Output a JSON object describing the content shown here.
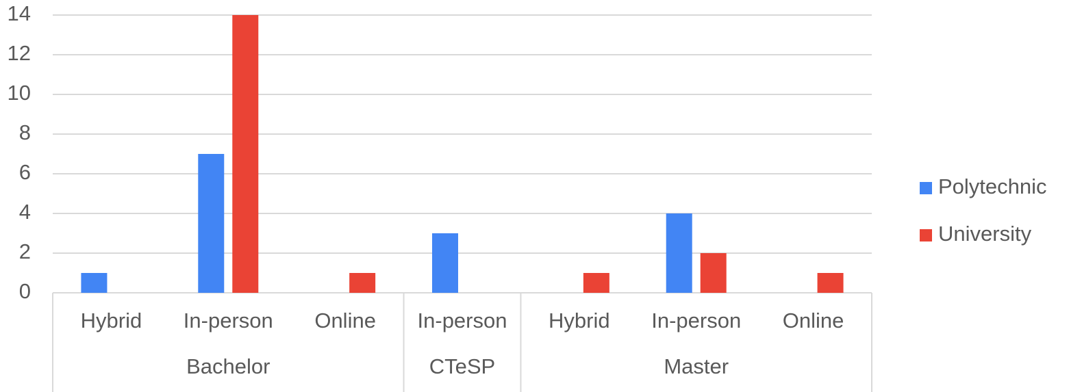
{
  "chart_data": {
    "type": "bar",
    "groups": [
      {
        "name": "Bachelor",
        "categories": [
          "Hybrid",
          "In-person",
          "Online"
        ]
      },
      {
        "name": "CTeSP",
        "categories": [
          "In-person"
        ]
      },
      {
        "name": "Master",
        "categories": [
          "Hybrid",
          "In-person",
          "Online"
        ]
      }
    ],
    "series": [
      {
        "name": "Polytechnic",
        "color": "#4285f4",
        "values": [
          1,
          7,
          0,
          3,
          0,
          4,
          0
        ]
      },
      {
        "name": "University",
        "color": "#ea4335",
        "values": [
          0,
          14,
          1,
          0,
          1,
          2,
          1
        ]
      }
    ],
    "ylim": [
      0,
      14
    ],
    "yticks": [
      0,
      2,
      4,
      6,
      8,
      10,
      12,
      14
    ],
    "grid": true,
    "legend": "right"
  }
}
